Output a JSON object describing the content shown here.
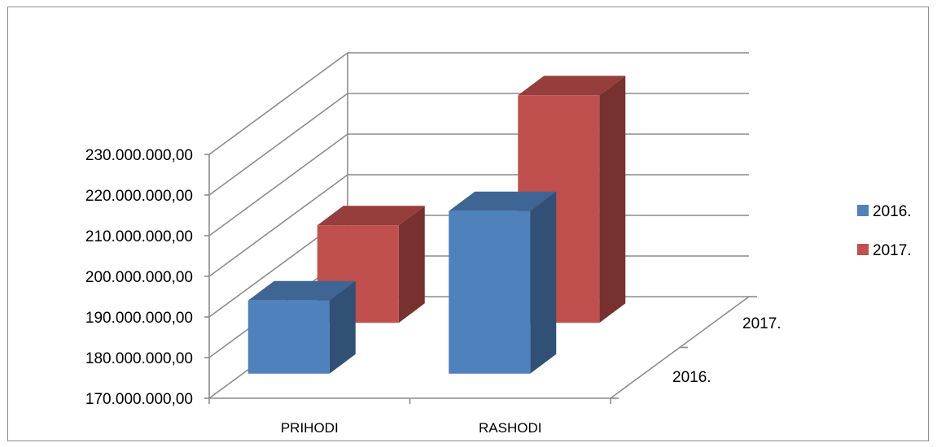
{
  "chart_data": {
    "type": "bar",
    "categories": [
      "PRIHODI",
      "RASHODI"
    ],
    "depth_categories": [
      "2016.",
      "2017."
    ],
    "series": [
      {
        "name": "2016.",
        "values": [
          188000000,
          210000000
        ],
        "color": "#4F81BD"
      },
      {
        "name": "2017.",
        "values": [
          194000000,
          226000000
        ],
        "color": "#C0504D"
      }
    ],
    "ylim": [
      170000000,
      230000000
    ],
    "yticks": [
      "170.000.000,00",
      "180.000.000,00",
      "190.000.000,00",
      "200.000.000,00",
      "210.000.000,00",
      "220.000.000,00",
      "230.000.000,00"
    ],
    "grid": true,
    "legend": "right",
    "style": "3d-clustered-column"
  }
}
